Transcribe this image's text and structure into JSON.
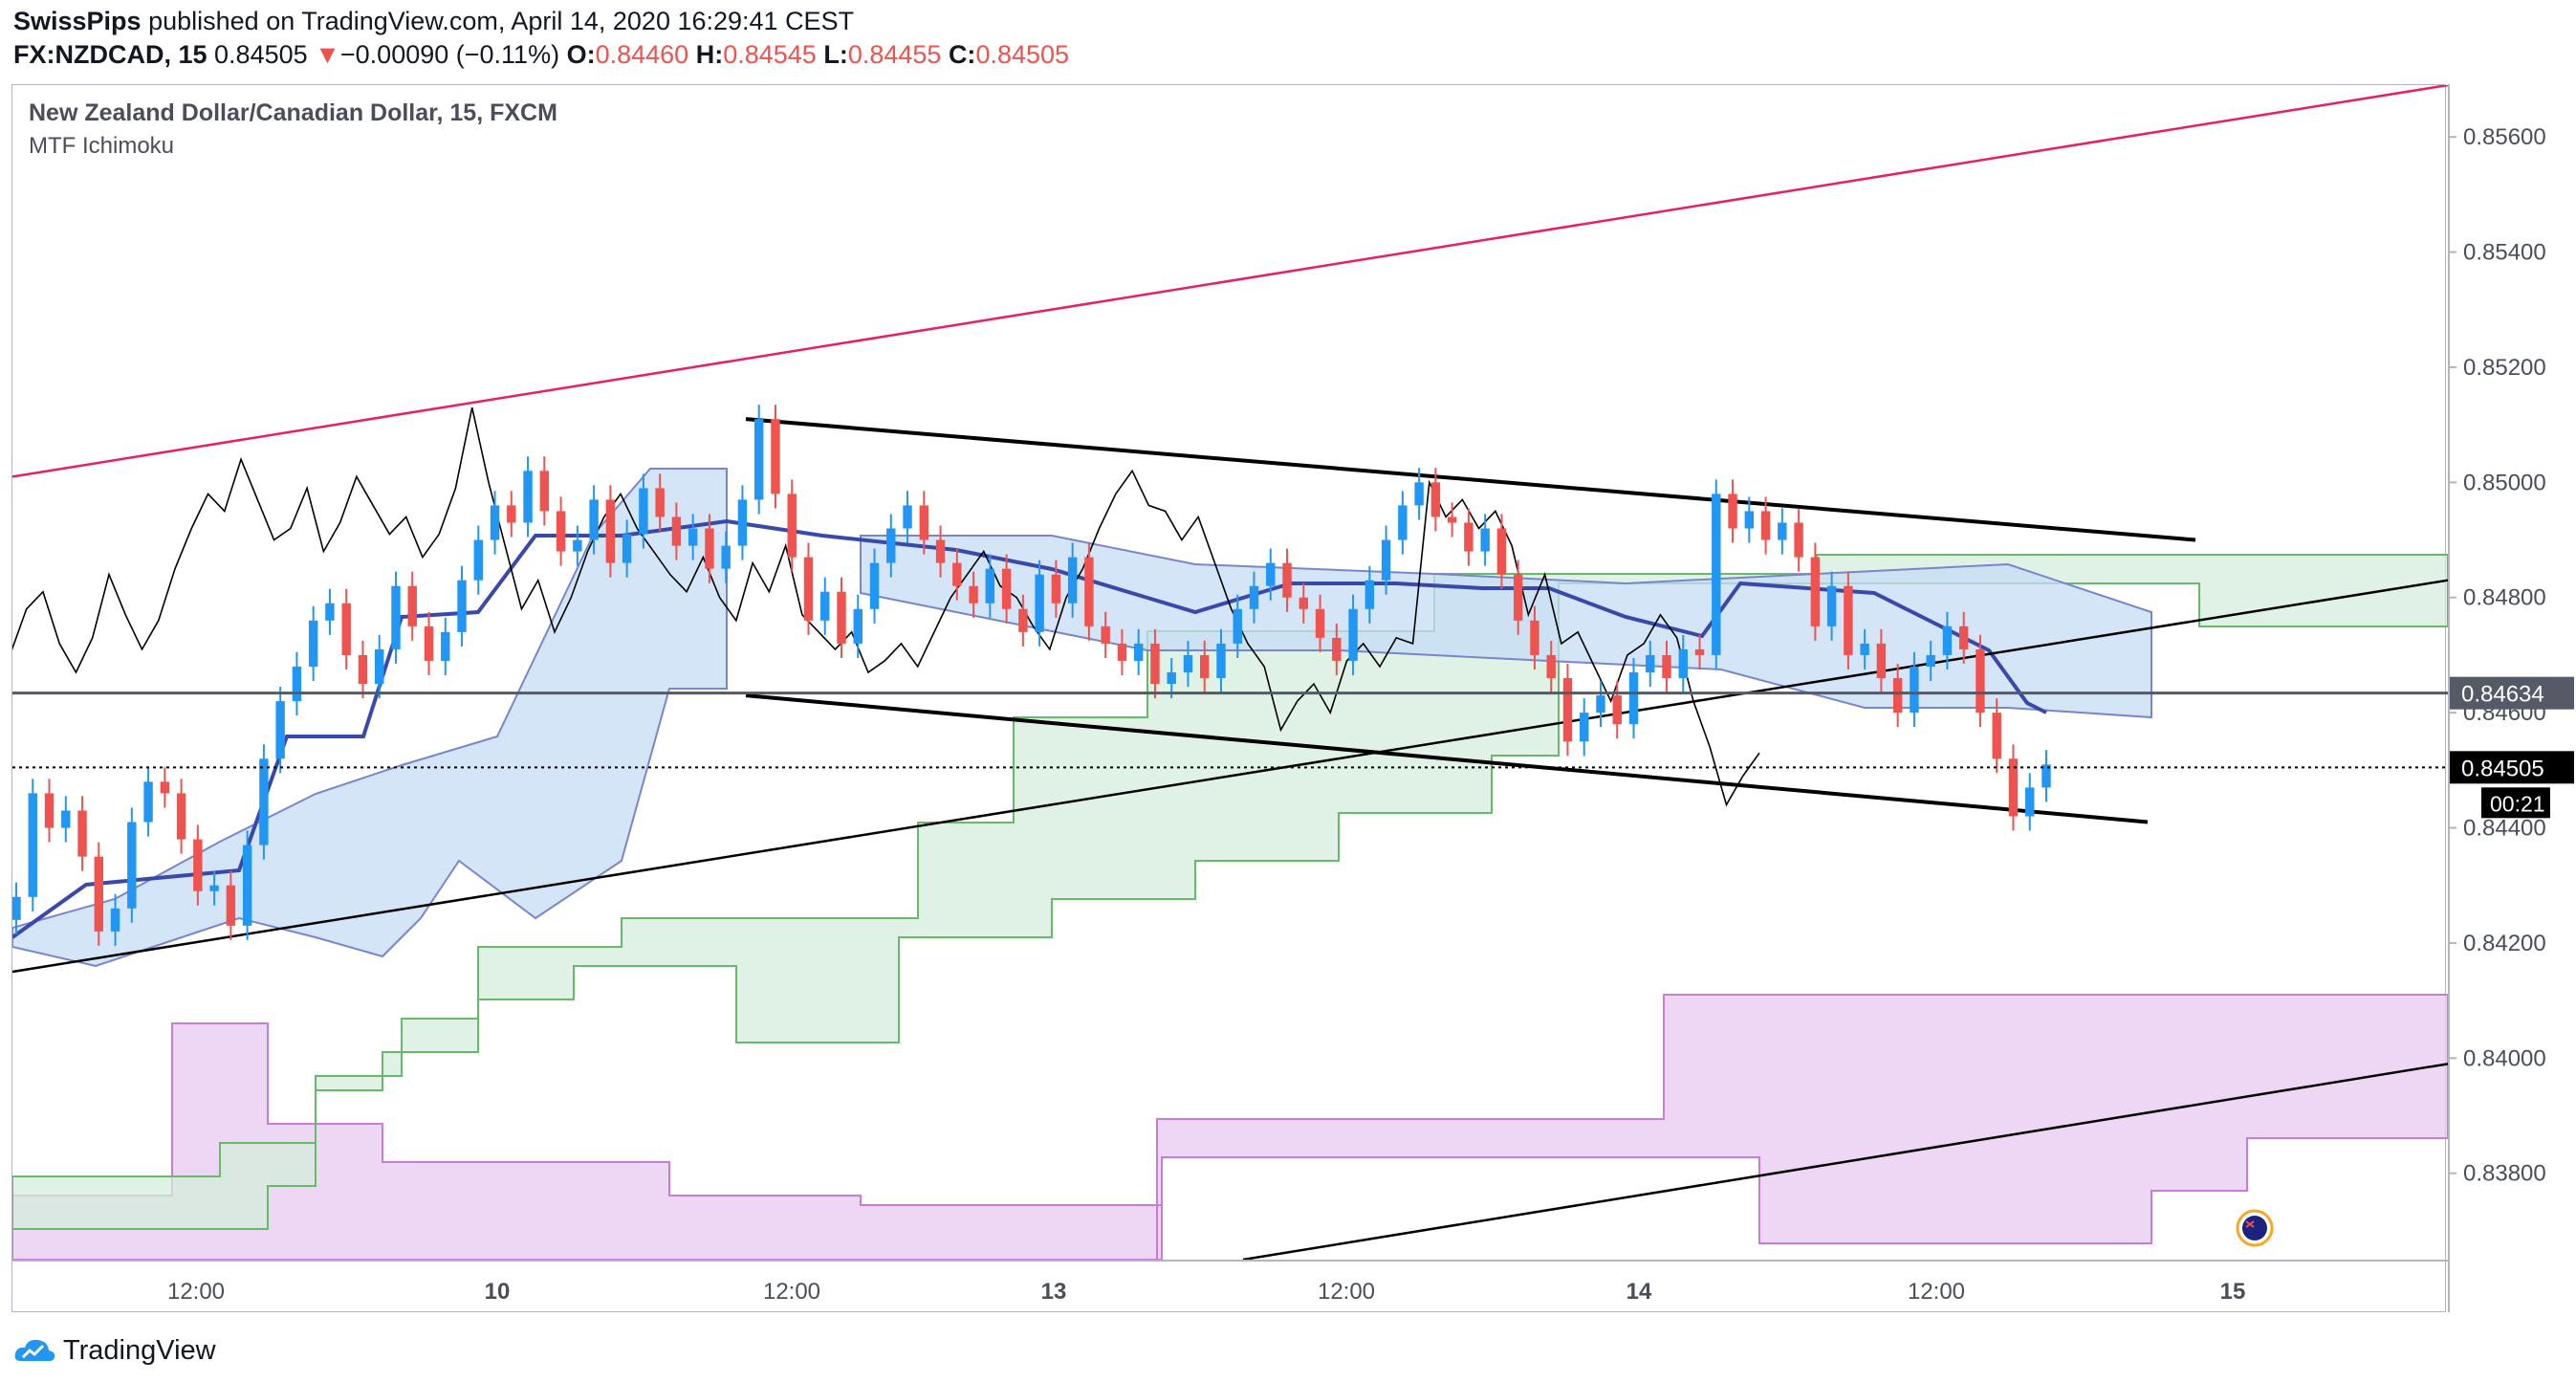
{
  "header": {
    "publisher": "SwissPips",
    "published_text": "published on TradingView.com, April 14, 2020 16:29:41 CEST"
  },
  "quote": {
    "symbol": "FX:NZDCAD, 15",
    "last": "0.84505",
    "change_arrow": "▼",
    "change": "−0.00090 (−0.11%)",
    "o_label": "O:",
    "o": "0.84460",
    "h_label": "H:",
    "h": "0.84545",
    "l_label": "L:",
    "l": "0.84455",
    "c_label": "C:",
    "c": "0.84505"
  },
  "legend": {
    "symbol_title": "New Zealand Dollar/Canadian Dollar, 15, FXCM",
    "indicator": "MTF Ichimoku"
  },
  "footer": {
    "brand": "TradingView"
  },
  "colors": {
    "up": "#2196f3",
    "down": "#ef5350",
    "pink_line": "#e91e63",
    "kijun": "#3949ab",
    "cloud_blue": "#c5dcf5",
    "cloud_green": "#d4eedc",
    "cloud_purple": "#e8c9f0",
    "last_price_label": "#000000"
  },
  "chart_data": {
    "type": "candlestick",
    "ylim": [
      0.8365,
      0.8569
    ],
    "y_ticks": [
      "0.85600",
      "0.85400",
      "0.85200",
      "0.85000",
      "0.84800",
      "0.84600",
      "0.84400",
      "0.84200",
      "0.84000",
      "0.83800"
    ],
    "y_tick_values": [
      0.856,
      0.854,
      0.852,
      0.85,
      0.848,
      0.846,
      0.844,
      0.842,
      0.84,
      0.838
    ],
    "x_ticks": [
      "12:00",
      "10",
      "12:00",
      "13",
      "12:00",
      "14",
      "12:00",
      "15"
    ],
    "x_tick_bold": [
      false,
      true,
      false,
      true,
      false,
      true,
      false,
      true
    ],
    "last_price": "0.84505",
    "last_price_value": 0.84505,
    "countdown": "00:21",
    "horizontal_level": "0.84634",
    "horizontal_level_value": 0.84634,
    "close_path": [
      0.8428,
      0.8446,
      0.844,
      0.8443,
      0.8435,
      0.8422,
      0.8426,
      0.8441,
      0.8448,
      0.8446,
      0.8438,
      0.8429,
      0.843,
      0.8423,
      0.8437,
      0.8452,
      0.8462,
      0.8468,
      0.8476,
      0.8479,
      0.847,
      0.8465,
      0.8471,
      0.8482,
      0.8475,
      0.8469,
      0.8474,
      0.8483,
      0.849,
      0.8496,
      0.8493,
      0.8502,
      0.8495,
      0.8488,
      0.849,
      0.8497,
      0.8486,
      0.8491,
      0.8499,
      0.8494,
      0.8489,
      0.8492,
      0.8485,
      0.8489,
      0.8497,
      0.8511,
      0.8498,
      0.8487,
      0.8476,
      0.8481,
      0.8472,
      0.8478,
      0.8486,
      0.8492,
      0.8496,
      0.849,
      0.8486,
      0.8482,
      0.8479,
      0.8485,
      0.8478,
      0.8474,
      0.8484,
      0.8479,
      0.8487,
      0.8475,
      0.8472,
      0.8469,
      0.8472,
      0.8465,
      0.8467,
      0.847,
      0.8466,
      0.8472,
      0.8478,
      0.8482,
      0.8486,
      0.848,
      0.8478,
      0.8473,
      0.8469,
      0.8478,
      0.8483,
      0.849,
      0.8496,
      0.85,
      0.8494,
      0.8493,
      0.8488,
      0.8492,
      0.8484,
      0.8476,
      0.847,
      0.8466,
      0.8455,
      0.846,
      0.8463,
      0.8458,
      0.8467,
      0.847,
      0.8466,
      0.8471,
      0.847,
      0.8498,
      0.8492,
      0.8495,
      0.849,
      0.8493,
      0.8487,
      0.8475,
      0.8482,
      0.847,
      0.8472,
      0.8466,
      0.846,
      0.8468,
      0.847,
      0.8475,
      0.8471,
      0.846,
      0.8452,
      0.8442,
      0.8447,
      0.8451
    ],
    "ichimoku_lines": [
      "kijun",
      "tenkan",
      "chikou",
      "senkou span A",
      "senkou span B"
    ],
    "cloud_layers": [
      "blue (15m)",
      "green (higher timeframe)",
      "purple (higher timeframe)"
    ],
    "trendlines": [
      {
        "name": "pink upper trendline",
        "from": [
          "start",
          0.8501
        ],
        "to": [
          "end",
          0.8569
        ]
      },
      {
        "name": "upper channel line",
        "from": [
          "9th 12:00",
          0.8511
        ],
        "to": [
          "14th",
          0.849
        ]
      },
      {
        "name": "lower channel line",
        "from": [
          "9th 12:00",
          0.8463
        ],
        "to": [
          "14th",
          0.8441
        ]
      },
      {
        "name": "rising support line",
        "from": [
          "start",
          0.8415
        ],
        "to": [
          "end",
          0.8483
        ]
      },
      {
        "name": "lower rising line",
        "from": [
          "13th",
          0.8365
        ],
        "to": [
          "end",
          0.8399
        ]
      }
    ]
  }
}
